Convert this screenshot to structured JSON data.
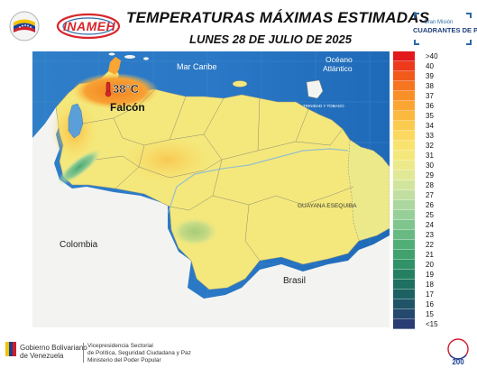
{
  "header": {
    "title": "TEMPERATURAS MÁXIMAS ESTIMADAS",
    "subtitle": "LUNES 28 DE JULIO DE 2025",
    "logo_left_text": "INAMEH",
    "logo_right_small": "Gran Misión",
    "logo_right_big": "CUADRANTES DE PAZ"
  },
  "map": {
    "labels": {
      "mar_caribe": "Mar Caribe",
      "oceano": "Océano",
      "atlantico": "Atlántico",
      "colombia": "Colombia",
      "brasil": "Brasil",
      "guayana": "GUAYANA ESEQUIBA",
      "trinidad": "TRINIDAD Y TOBAGO"
    },
    "highlight": {
      "value": "38°C",
      "state": "Falcón"
    }
  },
  "legend": {
    "items": [
      {
        "label": ">40",
        "color": "#e31a1c"
      },
      {
        "label": "40",
        "color": "#ec3a1a"
      },
      {
        "label": "39",
        "color": "#f25a1b"
      },
      {
        "label": "38",
        "color": "#f6761f"
      },
      {
        "label": "37",
        "color": "#f98f27"
      },
      {
        "label": "36",
        "color": "#fba533"
      },
      {
        "label": "35",
        "color": "#fbb93f"
      },
      {
        "label": "34",
        "color": "#fbcb4f"
      },
      {
        "label": "33",
        "color": "#fbd95f"
      },
      {
        "label": "32",
        "color": "#f9e36f"
      },
      {
        "label": "31",
        "color": "#f4e87c"
      },
      {
        "label": "30",
        "color": "#ece98a"
      },
      {
        "label": "29",
        "color": "#e1e896"
      },
      {
        "label": "28",
        "color": "#d2e59d"
      },
      {
        "label": "27",
        "color": "#c0dfa0"
      },
      {
        "label": "26",
        "color": "#acd89f"
      },
      {
        "label": "25",
        "color": "#96cf98"
      },
      {
        "label": "24",
        "color": "#7fc58e"
      },
      {
        "label": "23",
        "color": "#68ba82"
      },
      {
        "label": "22",
        "color": "#52ae77"
      },
      {
        "label": "21",
        "color": "#40a06e"
      },
      {
        "label": "20",
        "color": "#319167"
      },
      {
        "label": "19",
        "color": "#258062"
      },
      {
        "label": "18",
        "color": "#1e7061"
      },
      {
        "label": "17",
        "color": "#1d6163"
      },
      {
        "label": "16",
        "color": "#1f5468"
      },
      {
        "label": "15",
        "color": "#24486e"
      },
      {
        "label": "<15",
        "color": "#2a3c74"
      }
    ]
  },
  "footer": {
    "gob_line1": "Gobierno Bolivariano",
    "gob_line2": "de Venezuela",
    "vice_line1": "Vicepresidencia Sectorial",
    "vice_line2": "de Política, Seguridad Ciudadana y Paz",
    "vice_line3": "Ministerio del Poder Popular",
    "badge": "200"
  }
}
